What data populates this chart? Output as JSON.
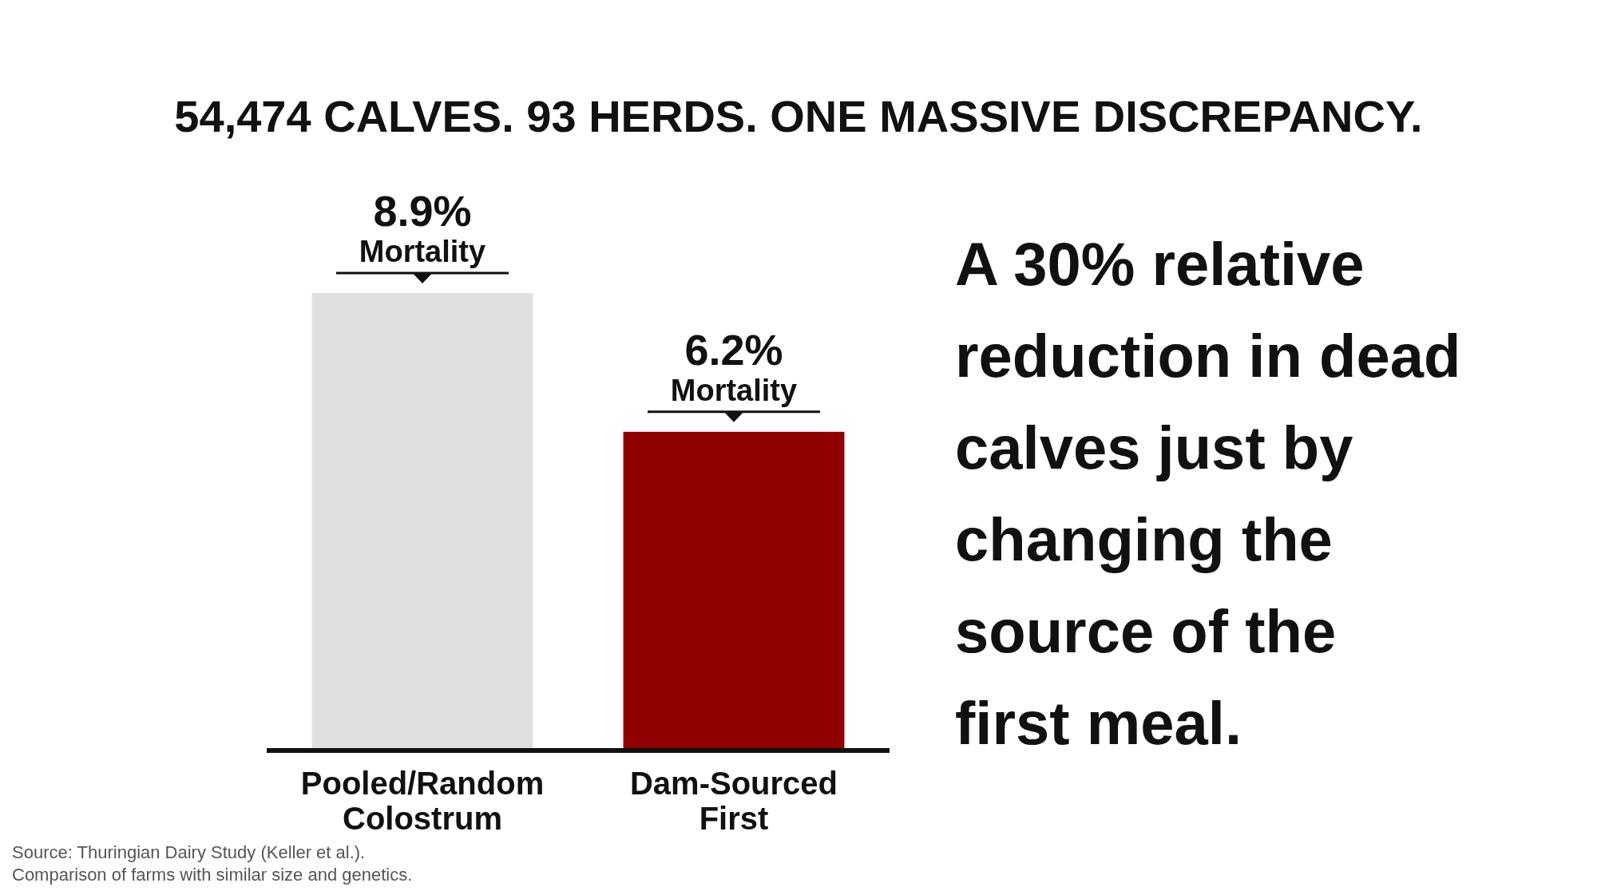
{
  "chart_data": {
    "type": "bar",
    "title": "54,474 CALVES. 93 HERDS. ONE MASSIVE DISCREPANCY.",
    "categories": [
      "Pooled/Random Colostrum",
      "Dam-Sourced First"
    ],
    "values": [
      8.9,
      6.2
    ],
    "colors": [
      "#e0e0e0",
      "#910000"
    ],
    "value_labels": [
      "8.9% Mortality",
      "6.2% Mortality"
    ],
    "annotations": [
      "A 30% relative reduction in dead calves just by changing the source of the first meal.",
      "Source: Thuringian Dairy Study (Keller et al.).",
      "Comparison of farms with similar size and genetics."
    ]
  }
}
